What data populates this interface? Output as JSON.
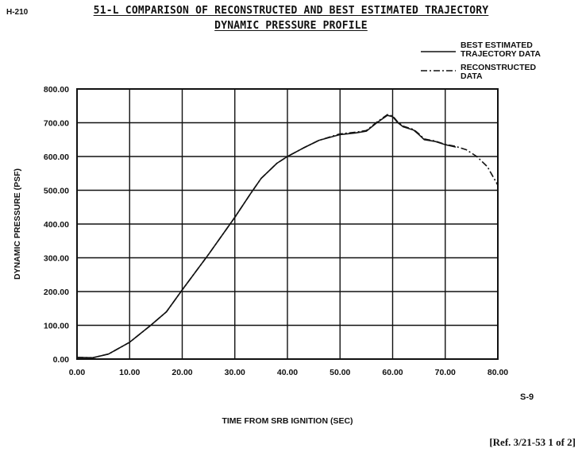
{
  "page_id": "H-210",
  "title_line1": "51-L COMPARISON OF RECONSTRUCTED AND BEST ESTIMATED TRAJECTORY",
  "title_line2": "DYNAMIC PRESSURE PROFILE",
  "page_mark": "S-9",
  "reference": "[Ref. 3/21-53 1 of 2]",
  "colors": {
    "ink": "#111111",
    "paper": "#ffffff"
  },
  "chart_data": {
    "type": "line",
    "title": "51-L COMPARISON OF RECONSTRUCTED AND BEST ESTIMATED TRAJECTORY",
    "subtitle": "DYNAMIC PRESSURE PROFILE",
    "xlabel": "TIME FROM SRB IGNITION (SEC)",
    "ylabel": "DYNAMIC PRESSURE (PSF)",
    "xlim": [
      0,
      80
    ],
    "ylim": [
      0,
      800
    ],
    "x_ticks": [
      "0.00",
      "10.00",
      "20.00",
      "30.00",
      "40.00",
      "50.00",
      "60.00",
      "70.00",
      "80.00"
    ],
    "y_ticks": [
      "0.00",
      "100.00",
      "200.00",
      "300.00",
      "400.00",
      "500.00",
      "600.00",
      "700.00",
      "800.00"
    ],
    "grid": true,
    "legend_position": "top-right",
    "series": [
      {
        "name": "BEST ESTIMATED\nTRAJECTORY DATA",
        "style": "solid",
        "points": [
          [
            0,
            5
          ],
          [
            3,
            4
          ],
          [
            6,
            15
          ],
          [
            10,
            50
          ],
          [
            14,
            100
          ],
          [
            17,
            140
          ],
          [
            20,
            205
          ],
          [
            25,
            310
          ],
          [
            30,
            420
          ],
          [
            33,
            490
          ],
          [
            35,
            535
          ],
          [
            38,
            580
          ],
          [
            40,
            600
          ],
          [
            43,
            625
          ],
          [
            46,
            648
          ],
          [
            50,
            665
          ],
          [
            53,
            670
          ],
          [
            55,
            675
          ],
          [
            57,
            700
          ],
          [
            59,
            722
          ],
          [
            60,
            718
          ],
          [
            61,
            700
          ],
          [
            62,
            688
          ],
          [
            64,
            678
          ],
          [
            65,
            665
          ],
          [
            66,
            650
          ],
          [
            68,
            645
          ],
          [
            70,
            635
          ],
          [
            72,
            628
          ]
        ]
      },
      {
        "name": "RECONSTRUCTED\nDATA",
        "style": "dash-dot",
        "points": [
          [
            0,
            5
          ],
          [
            3,
            4
          ],
          [
            6,
            15
          ],
          [
            10,
            50
          ],
          [
            14,
            100
          ],
          [
            17,
            140
          ],
          [
            20,
            205
          ],
          [
            25,
            310
          ],
          [
            30,
            420
          ],
          [
            33,
            490
          ],
          [
            35,
            535
          ],
          [
            38,
            580
          ],
          [
            40,
            600
          ],
          [
            43,
            625
          ],
          [
            46,
            648
          ],
          [
            50,
            667
          ],
          [
            53,
            672
          ],
          [
            55,
            677
          ],
          [
            57,
            702
          ],
          [
            59,
            724
          ],
          [
            60,
            720
          ],
          [
            61,
            702
          ],
          [
            62,
            690
          ],
          [
            64,
            680
          ],
          [
            65,
            667
          ],
          [
            66,
            652
          ],
          [
            68,
            646
          ],
          [
            70,
            636
          ],
          [
            72,
            630
          ],
          [
            74,
            620
          ],
          [
            76,
            600
          ],
          [
            78,
            570
          ],
          [
            80,
            515
          ]
        ]
      }
    ]
  }
}
